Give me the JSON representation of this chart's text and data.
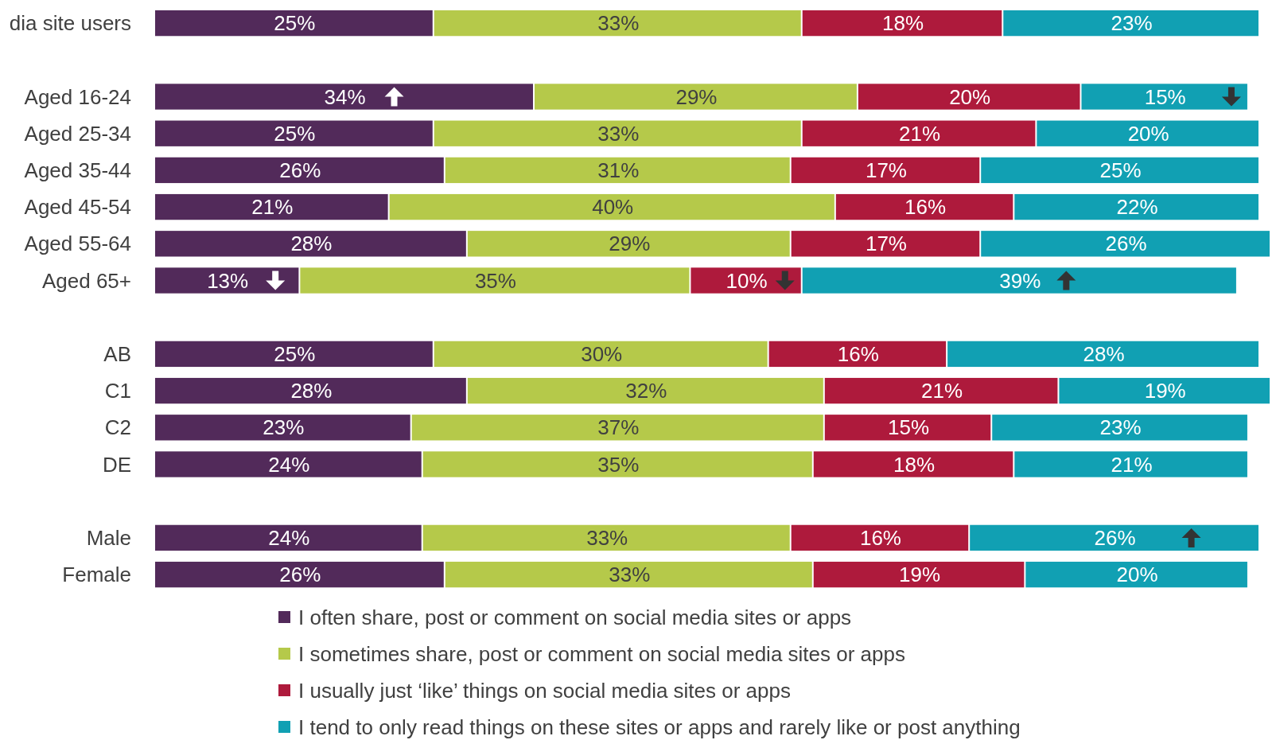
{
  "chart_data": {
    "type": "bar",
    "orientation": "horizontal",
    "stacked": true,
    "legend": "bottom",
    "categories": [
      "dia site users",
      null,
      "Aged 16-24",
      "Aged 25-34",
      "Aged 35-44",
      "Aged 45-54",
      "Aged 55-64",
      "Aged 65+",
      null,
      "AB",
      "C1",
      "C2",
      "DE",
      null,
      "Male",
      "Female"
    ],
    "series": [
      {
        "name": "I often share, post or comment on social media sites or apps",
        "color": "#522a5a",
        "values": [
          25,
          null,
          34,
          25,
          26,
          21,
          28,
          13,
          null,
          25,
          28,
          23,
          24,
          null,
          24,
          26
        ],
        "value_labels": [
          "25%",
          null,
          "34%",
          "25%",
          "26%",
          "21%",
          "28%",
          "13%",
          null,
          "25%",
          "28%",
          "23%",
          "24%",
          null,
          "24%",
          "26%"
        ]
      },
      {
        "name": "I sometimes share, post or comment on social media sites or apps",
        "color": "#b5c94a",
        "values": [
          33,
          null,
          29,
          33,
          31,
          40,
          29,
          35,
          null,
          30,
          32,
          37,
          35,
          null,
          33,
          33
        ],
        "value_labels": [
          "33%",
          null,
          "29%",
          "33%",
          "31%",
          "40%",
          "29%",
          "35%",
          null,
          "30%",
          "32%",
          "37%",
          "35%",
          null,
          "33%",
          "33%"
        ]
      },
      {
        "name": "I usually just ‘like’ things on social media sites or apps",
        "color": "#ae1a3c",
        "values": [
          18,
          null,
          20,
          21,
          17,
          16,
          17,
          10,
          null,
          16,
          21,
          15,
          18,
          null,
          16,
          19
        ],
        "value_labels": [
          "18%",
          null,
          "20%",
          "21%",
          "17%",
          "16%",
          "17%",
          "10%",
          null,
          "16%",
          "21%",
          "15%",
          "18%",
          null,
          "16%",
          "19%"
        ]
      },
      {
        "name": "I tend to only read things on these sites or apps and rarely like or post anything",
        "color": "#11a0b3",
        "values": [
          23,
          null,
          15,
          20,
          25,
          22,
          26,
          39,
          null,
          28,
          19,
          23,
          21,
          null,
          26,
          20
        ],
        "value_labels": [
          "23%",
          null,
          "15%",
          "20%",
          "25%",
          "22%",
          "26%",
          "39%",
          null,
          "28%",
          "19%",
          "23%",
          "21%",
          null,
          "26%",
          "20%"
        ]
      }
    ]
  }
}
